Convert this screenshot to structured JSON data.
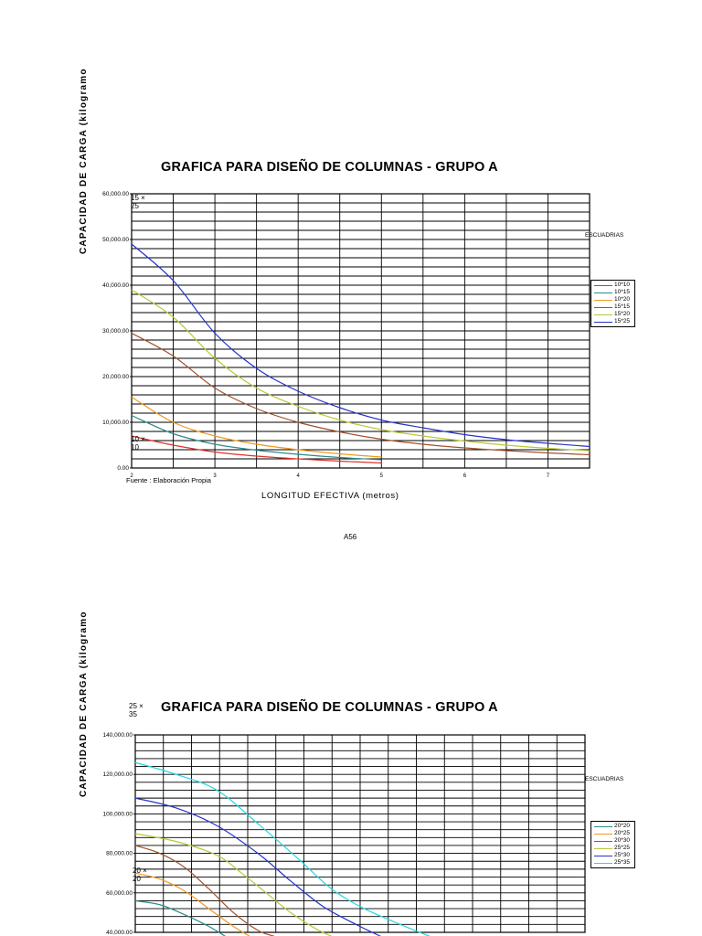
{
  "colors": {
    "10*10": "#e0302a",
    "10*15": "#2b8a8a",
    "10*20": "#f09a1e",
    "15*15": "#a0522d",
    "15*20": "#b9c83a",
    "15*25": "#2633c8",
    "20*20": "#2b8a8a",
    "20*25": "#f09a1e",
    "20*30": "#a0522d",
    "25*25": "#b9c83a",
    "25*30": "#2633c8",
    "25*35": "#27d6e0"
  },
  "page_number": "A56",
  "chart_data": [
    {
      "type": "line",
      "title": "GRAFICA PARA DISEÑO DE COLUMNAS - GRUPO A",
      "ylabel": "CAPACIDAD DE CARGA (kilogramo",
      "xlabel": "LONGITUD EFECTIVA (metros)",
      "xlim": [
        2,
        7.5
      ],
      "ylim": [
        0,
        60000
      ],
      "x_ticks": [
        2,
        3,
        4,
        5,
        6,
        7
      ],
      "x_tick_labels": [
        "2",
        "3",
        "4",
        "5",
        "6",
        "7"
      ],
      "y_ticks": [
        0,
        10000,
        20000,
        30000,
        40000,
        50000,
        60000
      ],
      "y_tick_labels": [
        "0.00",
        "10,000.00",
        "20,000.00",
        "30,000.00",
        "40,000.00",
        "50,000.00",
        "60,000.00"
      ],
      "legend_title": "ESCUADRIAS",
      "legend_position": "right",
      "annotations": [
        {
          "text": "15 ×",
          "text2": "25",
          "at": "top-left"
        },
        {
          "text": "10 ×",
          "text2": "10",
          "at": "bottom-left"
        }
      ],
      "source_note": "Fuente : Elaboración Propia",
      "series": [
        {
          "name": "10*10",
          "x": [
            2,
            2.5,
            3,
            3.5,
            4,
            4.5,
            5
          ],
          "y": [
            7000,
            5000,
            3500,
            2600,
            2000,
            1500,
            1100
          ]
        },
        {
          "name": "10*15",
          "x": [
            2,
            2.5,
            3,
            3.5,
            4,
            4.5,
            5
          ],
          "y": [
            11500,
            7500,
            5200,
            3900,
            3000,
            2300,
            1800
          ]
        },
        {
          "name": "10*20",
          "x": [
            2,
            2.5,
            3,
            3.5,
            4,
            4.5,
            5
          ],
          "y": [
            15500,
            10000,
            7000,
            5200,
            4000,
            3100,
            2400
          ]
        },
        {
          "name": "15*15",
          "x": [
            2,
            2.5,
            3,
            3.5,
            4,
            4.5,
            5,
            5.5,
            6,
            6.5,
            7,
            7.5
          ],
          "y": [
            29500,
            24500,
            17500,
            13000,
            10000,
            7900,
            6300,
            5200,
            4400,
            3800,
            3300,
            2900
          ]
        },
        {
          "name": "15*20",
          "x": [
            2,
            2.5,
            3,
            3.5,
            4,
            4.5,
            5,
            5.5,
            6,
            6.5,
            7,
            7.5
          ],
          "y": [
            39000,
            33000,
            24000,
            17500,
            13500,
            10500,
            8400,
            7000,
            5900,
            5000,
            4300,
            3800
          ]
        },
        {
          "name": "15*25",
          "x": [
            2,
            2.5,
            3,
            3.5,
            4,
            4.5,
            5,
            5.5,
            6,
            6.5,
            7,
            7.5
          ],
          "y": [
            49000,
            41000,
            29500,
            21800,
            16800,
            13200,
            10500,
            8800,
            7300,
            6200,
            5400,
            4700
          ]
        }
      ]
    },
    {
      "type": "line",
      "title": "GRAFICA PARA DISEÑO DE COLUMNAS - GRUPO A",
      "ylabel": "CAPACIDAD DE CARGA (kilogramo",
      "ylim": [
        40000,
        140000
      ],
      "y_ticks": [
        40000,
        60000,
        80000,
        100000,
        120000,
        140000
      ],
      "y_tick_labels": [
        "40,000.00",
        "60,000.00",
        "80,000.00",
        "100,000.00",
        "120,000.00",
        "140,000.00"
      ],
      "xlim": [
        2,
        7.5
      ],
      "legend_title": "ESCUADRIAS",
      "legend_position": "right",
      "annotations": [
        {
          "text": "25 ×",
          "text2": "35",
          "at": "above-title"
        },
        {
          "text": "20 ×",
          "text2": "20",
          "at": "left"
        }
      ],
      "series": [
        {
          "name": "20*20",
          "x": [
            2,
            2.3,
            2.6,
            2.9,
            3.1
          ],
          "y": [
            56000,
            54000,
            49000,
            43000,
            38000
          ]
        },
        {
          "name": "20*25",
          "x": [
            2,
            2.3,
            2.6,
            2.9,
            3.2,
            3.4
          ],
          "y": [
            70000,
            67000,
            61000,
            52000,
            43000,
            38000
          ]
        },
        {
          "name": "20*30",
          "x": [
            2,
            2.3,
            2.6,
            2.9,
            3.2,
            3.5,
            3.7
          ],
          "y": [
            84000,
            80000,
            73000,
            62000,
            50000,
            41000,
            38000
          ]
        },
        {
          "name": "25*25",
          "x": [
            2,
            2.5,
            3,
            3.3,
            3.6,
            3.9,
            4.2,
            4.4
          ],
          "y": [
            90000,
            86000,
            79000,
            70000,
            60000,
            50000,
            42000,
            38000
          ]
        },
        {
          "name": "25*30",
          "x": [
            2,
            2.5,
            3,
            3.5,
            3.9,
            4.3,
            4.7,
            5.0
          ],
          "y": [
            108000,
            103000,
            94000,
            80000,
            66000,
            53000,
            44000,
            38000
          ]
        },
        {
          "name": "25*35",
          "x": [
            2,
            2.5,
            3,
            3.5,
            4,
            4.4,
            4.8,
            5.3,
            5.6
          ],
          "y": [
            126000,
            120000,
            112000,
            95000,
            77000,
            62000,
            52000,
            43000,
            38000
          ]
        }
      ]
    }
  ]
}
